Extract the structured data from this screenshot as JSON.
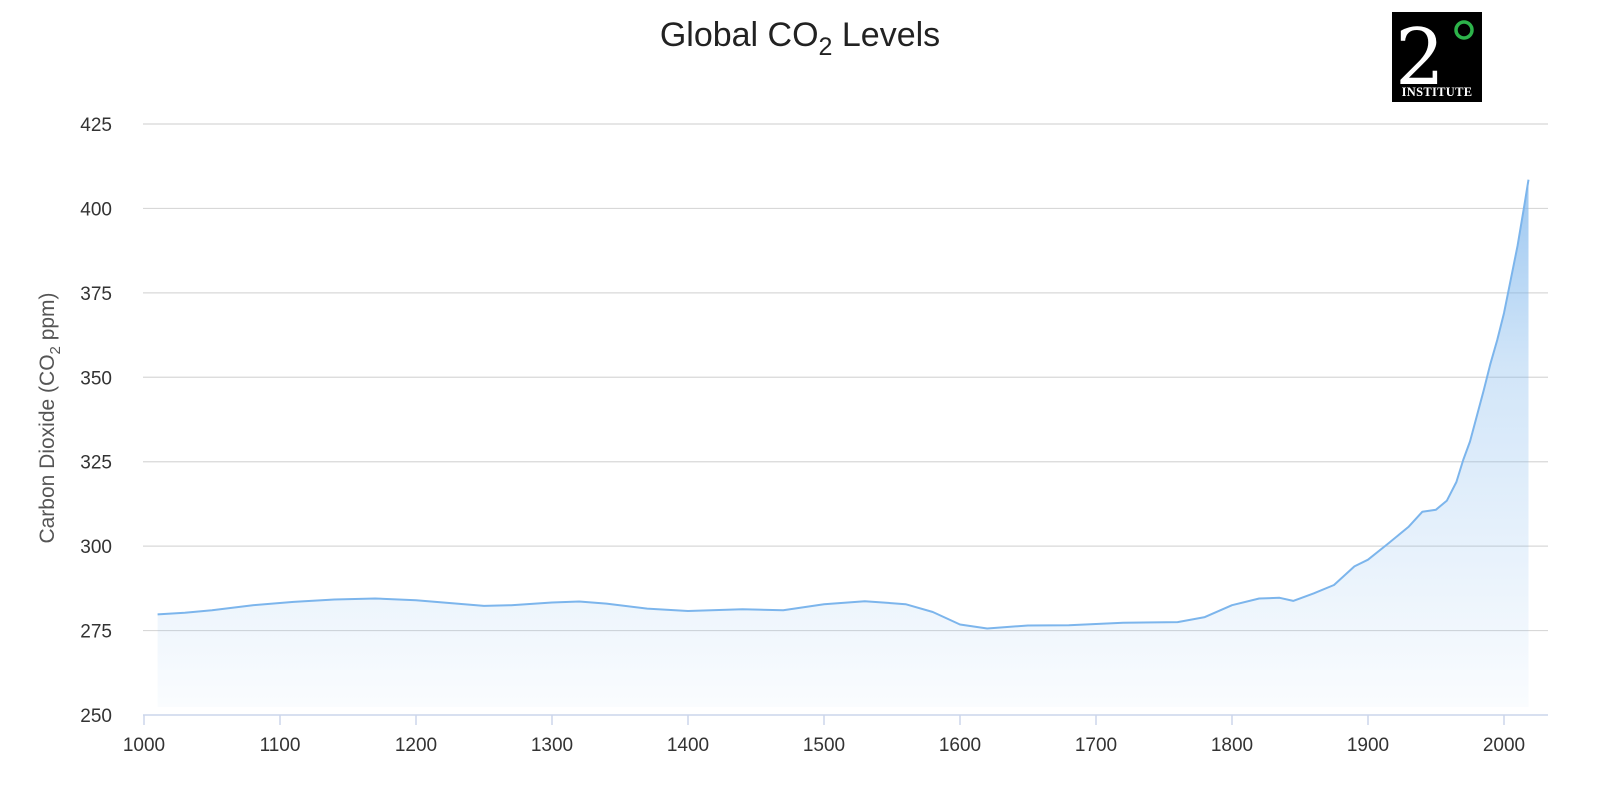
{
  "logo": {
    "numeral": "2",
    "caption": "INSTITUTE",
    "colors": {
      "background": "#000000",
      "ring": "#2db34a"
    }
  },
  "colors": {
    "line": "#7cb5ec",
    "grid": "#d8d8d8",
    "axis": "#ccd6eb"
  },
  "chart_data": {
    "type": "area",
    "title": "Global CO₂ Levels",
    "title_parts": {
      "before": "Global CO",
      "subscript": "2",
      "after": " Levels"
    },
    "ylabel": "Carbon Dioxide (CO₂ ppm)",
    "ylabel_parts": {
      "before": "Carbon Dioxide (CO",
      "subscript": "2",
      "after": " ppm)"
    },
    "xlabel": "",
    "xlim": [
      1000,
      2020
    ],
    "ylim": [
      250,
      425
    ],
    "x_ticks": [
      1000,
      1100,
      1200,
      1300,
      1400,
      1500,
      1600,
      1700,
      1800,
      1900,
      2000
    ],
    "y_ticks": [
      250,
      275,
      300,
      325,
      350,
      375,
      400,
      425
    ],
    "grid": true,
    "legend": "none",
    "series": [
      {
        "x": [
          1010,
          1030,
          1050,
          1080,
          1110,
          1140,
          1170,
          1200,
          1230,
          1250,
          1270,
          1300,
          1320,
          1340,
          1370,
          1400,
          1440,
          1470,
          1500,
          1530,
          1560,
          1580,
          1600,
          1620,
          1650,
          1680,
          1720,
          1760,
          1780,
          1800,
          1820,
          1835,
          1845,
          1860,
          1875,
          1890,
          1900,
          1915,
          1930,
          1940,
          1950,
          1958,
          1965,
          1970,
          1975,
          1980,
          1985,
          1990,
          1995,
          2000,
          2005,
          2010,
          2015,
          2018
        ],
        "values": [
          279.8,
          280.3,
          281.0,
          282.5,
          283.5,
          284.2,
          284.5,
          284.0,
          283.0,
          282.3,
          282.5,
          283.3,
          283.6,
          283.0,
          281.5,
          280.8,
          281.3,
          281.0,
          282.8,
          283.7,
          282.8,
          280.5,
          276.8,
          275.6,
          276.5,
          276.6,
          277.3,
          277.5,
          279.0,
          282.5,
          284.5,
          284.7,
          283.8,
          286.0,
          288.5,
          294.0,
          296.0,
          300.8,
          305.8,
          310.2,
          310.8,
          313.5,
          319.0,
          325.5,
          331.0,
          338.5,
          346.0,
          354.0,
          361.0,
          369.0,
          379.0,
          389.0,
          401.0,
          408.5
        ]
      }
    ]
  }
}
